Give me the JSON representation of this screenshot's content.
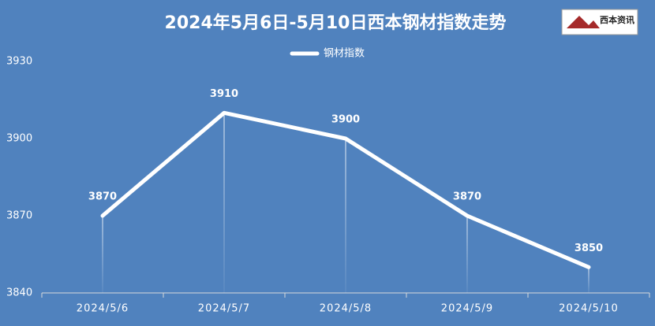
{
  "chart_data": {
    "type": "line",
    "title": "2024年5月6日-5月10日西本钢材指数走势",
    "logo": "西本资讯",
    "categories": [
      "2024/5/6",
      "2024/5/7",
      "2024/5/8",
      "2024/5/9",
      "2024/5/10"
    ],
    "series": [
      {
        "name": "钢材指数",
        "color": "#ffffff",
        "values": [
          3870,
          3910,
          3900,
          3870,
          3850
        ]
      }
    ],
    "ylim": [
      3840,
      3930
    ],
    "yticks": [
      3840,
      3870,
      3900,
      3930
    ],
    "grid": false,
    "legend": "top"
  }
}
